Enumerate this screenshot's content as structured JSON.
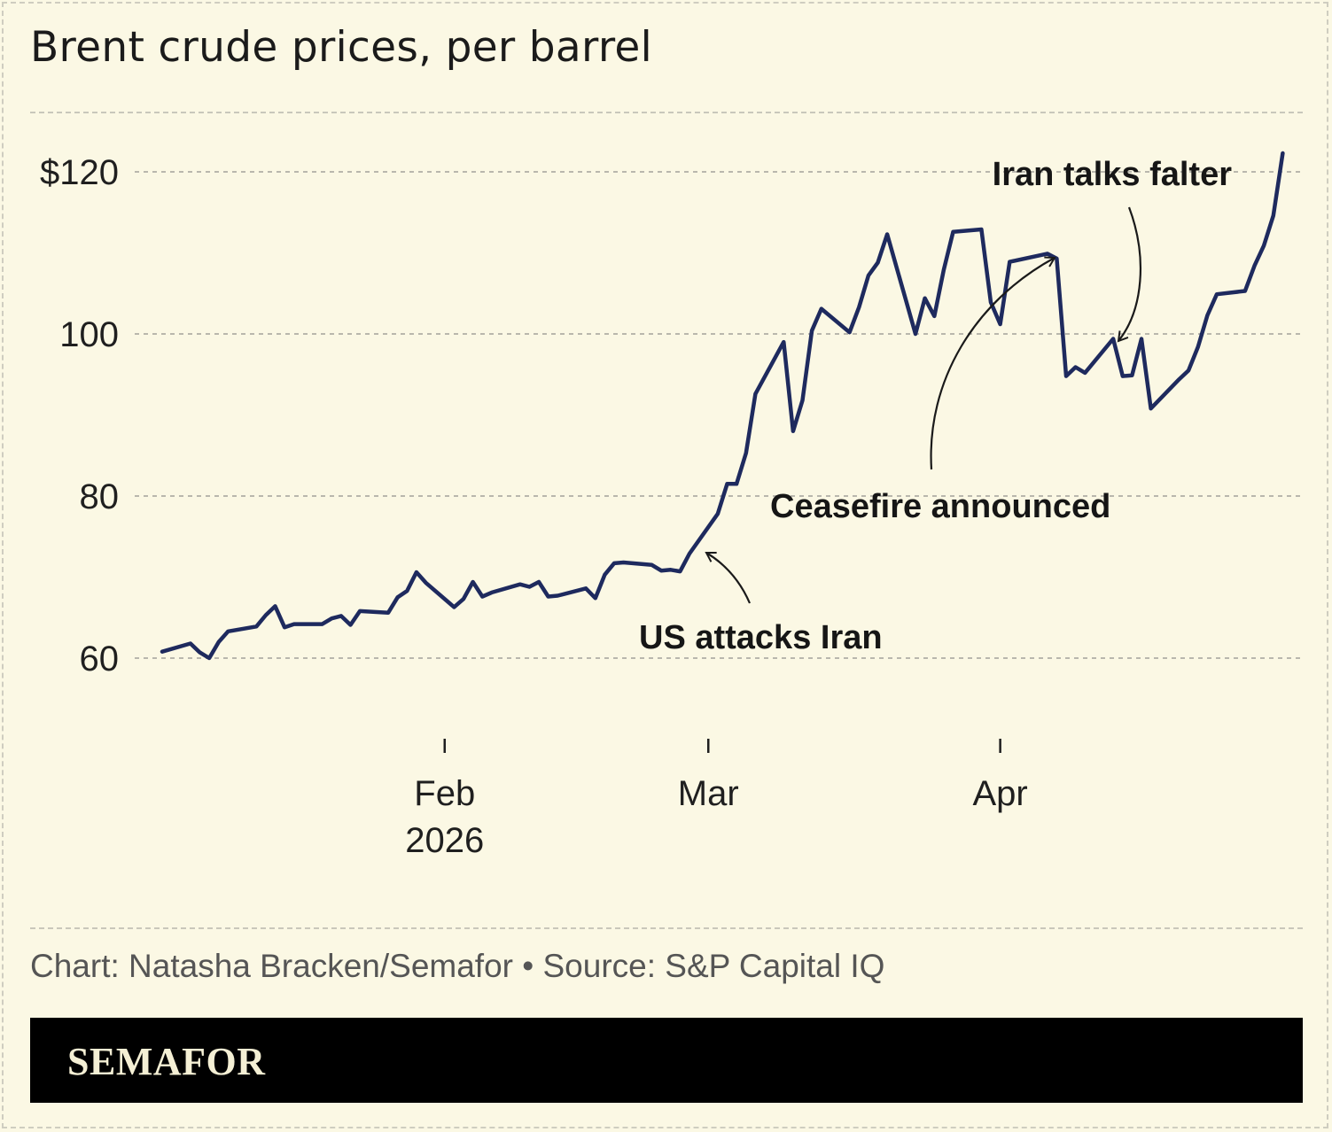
{
  "chart_data": {
    "type": "line",
    "title": "Brent crude prices, per barrel",
    "ylabel": "",
    "xlabel": "",
    "ylim": [
      49,
      127
    ],
    "y_ticks": [
      {
        "value": 60,
        "label": "60"
      },
      {
        "value": 80,
        "label": "80"
      },
      {
        "value": 100,
        "label": "100"
      },
      {
        "value": 120,
        "label": "$120"
      }
    ],
    "x_ticks": [
      {
        "date": "2026-02-01",
        "label": "Feb",
        "sublabel": "2026"
      },
      {
        "date": "2026-03-01",
        "label": "Mar",
        "sublabel": ""
      },
      {
        "date": "2026-04-01",
        "label": "Apr",
        "sublabel": ""
      }
    ],
    "grid": true,
    "line_color": "#1e2a5e",
    "series": [
      {
        "name": "",
        "points": [
          [
            "2026-01-02",
            60.8
          ],
          [
            "2026-01-05",
            61.8
          ],
          [
            "2026-01-06",
            60.7
          ],
          [
            "2026-01-07",
            60.0
          ],
          [
            "2026-01-08",
            62.0
          ],
          [
            "2026-01-09",
            63.3
          ],
          [
            "2026-01-12",
            63.9
          ],
          [
            "2026-01-13",
            65.3
          ],
          [
            "2026-01-14",
            66.4
          ],
          [
            "2026-01-15",
            63.8
          ],
          [
            "2026-01-16",
            64.2
          ],
          [
            "2026-01-19",
            64.2
          ],
          [
            "2026-01-20",
            64.9
          ],
          [
            "2026-01-21",
            65.2
          ],
          [
            "2026-01-22",
            64.1
          ],
          [
            "2026-01-23",
            65.8
          ],
          [
            "2026-01-26",
            65.6
          ],
          [
            "2026-01-27",
            67.5
          ],
          [
            "2026-01-28",
            68.3
          ],
          [
            "2026-01-29",
            70.6
          ],
          [
            "2026-01-30",
            69.3
          ],
          [
            "2026-02-02",
            66.3
          ],
          [
            "2026-02-03",
            67.3
          ],
          [
            "2026-02-04",
            69.4
          ],
          [
            "2026-02-05",
            67.6
          ],
          [
            "2026-02-06",
            68.1
          ],
          [
            "2026-02-09",
            69.1
          ],
          [
            "2026-02-10",
            68.8
          ],
          [
            "2026-02-11",
            69.4
          ],
          [
            "2026-02-12",
            67.6
          ],
          [
            "2026-02-13",
            67.7
          ],
          [
            "2026-02-16",
            68.6
          ],
          [
            "2026-02-17",
            67.4
          ],
          [
            "2026-02-18",
            70.3
          ],
          [
            "2026-02-19",
            71.7
          ],
          [
            "2026-02-20",
            71.8
          ],
          [
            "2026-02-23",
            71.5
          ],
          [
            "2026-02-24",
            70.8
          ],
          [
            "2026-02-25",
            70.9
          ],
          [
            "2026-02-26",
            70.7
          ],
          [
            "2026-02-27",
            72.9
          ],
          [
            "2026-03-02",
            77.8
          ],
          [
            "2026-03-03",
            81.5
          ],
          [
            "2026-03-04",
            81.5
          ],
          [
            "2026-03-05",
            85.3
          ],
          [
            "2026-03-06",
            92.6
          ],
          [
            "2026-03-09",
            99.0
          ],
          [
            "2026-03-10",
            88.0
          ],
          [
            "2026-03-11",
            91.8
          ],
          [
            "2026-03-12",
            100.4
          ],
          [
            "2026-03-13",
            103.1
          ],
          [
            "2026-03-16",
            100.2
          ],
          [
            "2026-03-17",
            103.3
          ],
          [
            "2026-03-18",
            107.2
          ],
          [
            "2026-03-19",
            108.8
          ],
          [
            "2026-03-20",
            112.3
          ],
          [
            "2026-03-23",
            100.0
          ],
          [
            "2026-03-24",
            104.4
          ],
          [
            "2026-03-25",
            102.2
          ],
          [
            "2026-03-26",
            107.9
          ],
          [
            "2026-03-27",
            112.6
          ],
          [
            "2026-03-30",
            112.9
          ],
          [
            "2026-03-31",
            103.9
          ],
          [
            "2026-04-01",
            101.2
          ],
          [
            "2026-04-02",
            108.9
          ],
          [
            "2026-04-06",
            109.9
          ],
          [
            "2026-04-07",
            109.3
          ],
          [
            "2026-04-08",
            94.8
          ],
          [
            "2026-04-09",
            95.9
          ],
          [
            "2026-04-10",
            95.2
          ],
          [
            "2026-04-13",
            99.4
          ],
          [
            "2026-04-14",
            94.8
          ],
          [
            "2026-04-15",
            94.9
          ],
          [
            "2026-04-16",
            99.4
          ],
          [
            "2026-04-17",
            90.8
          ],
          [
            "2026-04-20",
            94.4
          ],
          [
            "2026-04-21",
            95.5
          ],
          [
            "2026-04-22",
            98.4
          ],
          [
            "2026-04-23",
            102.3
          ],
          [
            "2026-04-24",
            104.9
          ],
          [
            "2026-04-27",
            105.3
          ],
          [
            "2026-04-28",
            108.4
          ],
          [
            "2026-04-29",
            110.9
          ],
          [
            "2026-04-30",
            114.6
          ],
          [
            "2026-05-01",
            122.3
          ]
        ]
      }
    ],
    "annotations": [
      {
        "text": "US attacks Iran",
        "point_date": "2026-02-28",
        "point_value": 72.8
      },
      {
        "text": "Ceasefire announced",
        "point_date": "2026-04-07",
        "point_value": 109.3
      },
      {
        "text": "Iran talks falter",
        "point_date": "2026-04-13",
        "point_value": 99.4
      }
    ]
  },
  "footer": {
    "credit": "Chart: Natasha Bracken/Semafor • Source: S&P Capital IQ",
    "brand": "SEMAFOR"
  }
}
